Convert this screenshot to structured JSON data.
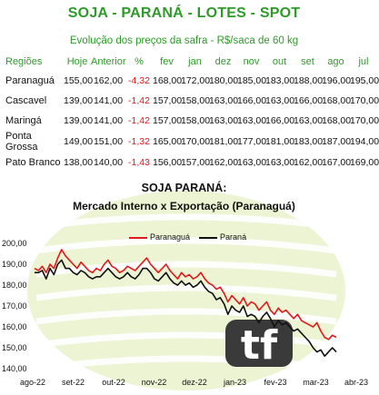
{
  "header": {
    "title": "SOJA - PARANÁ - LOTES - SPOT",
    "subtitle": "Evolução dos preços da safra - R$/saca de 60 kg"
  },
  "table": {
    "columns": [
      "Regiões",
      "Hoje",
      "Anterior",
      "%",
      "fev",
      "jan",
      "dez",
      "nov",
      "out",
      "set",
      "ago",
      "jul"
    ],
    "rows": [
      [
        "Paranaguá",
        "155,00",
        "162,00",
        "-4,32",
        "168,00",
        "172,00",
        "180,00",
        "185,00",
        "183,00",
        "188,00",
        "196,00",
        "195,00"
      ],
      [
        "Cascavel",
        "139,00",
        "141,00",
        "-1,42",
        "157,00",
        "158,00",
        "163,00",
        "166,00",
        "163,00",
        "166,00",
        "168,00",
        "170,00"
      ],
      [
        "Maringá",
        "139,00",
        "141,00",
        "-1,42",
        "157,00",
        "158,00",
        "163,00",
        "163,00",
        "166,00",
        "163,00",
        "168,00",
        "170,00"
      ],
      [
        "Ponta Grossa",
        "149,00",
        "151,00",
        "-1,32",
        "165,00",
        "170,00",
        "181,00",
        "177,00",
        "181,00",
        "183,00",
        "187,00",
        "194,00"
      ],
      [
        "Pato Branco",
        "138,00",
        "140,00",
        "-1,43",
        "156,00",
        "157,00",
        "162,00",
        "163,00",
        "163,00",
        "162,00",
        "167,00",
        "169,00"
      ]
    ],
    "negative_color": "#e0191b",
    "header_color": "#2e9a2a"
  },
  "chart": {
    "title": "SOJA PARANÁ:",
    "subtitle": "Mercado Interno x Exportação (Paranaguá)",
    "watermark": "tf"
  },
  "chart_data": {
    "type": "line",
    "ylim": [
      140,
      200
    ],
    "yticks": [
      "140,00",
      "150,00",
      "160,00",
      "170,00",
      "180,00",
      "190,00",
      "200,00"
    ],
    "xticks": [
      "ago-22",
      "set-22",
      "out-22",
      "nov-22",
      "dez-22",
      "jan-23",
      "fev-23",
      "mar-23",
      "abr-23"
    ],
    "grid": false,
    "legend_position": "top-center",
    "series": [
      {
        "name": "Paranaguá",
        "color": "#e0191b",
        "values": [
          188,
          187,
          189,
          186,
          190,
          188,
          193,
          197,
          194,
          192,
          190,
          188,
          191,
          189,
          187,
          186,
          188,
          187,
          190,
          192,
          189,
          188,
          186,
          187,
          189,
          188,
          187,
          189,
          191,
          193,
          190,
          188,
          186,
          188,
          190,
          187,
          185,
          183,
          186,
          184,
          185,
          183,
          184,
          186,
          183,
          181,
          180,
          178,
          179,
          176,
          172,
          175,
          173,
          171,
          174,
          170,
          172,
          171,
          168,
          170,
          172,
          168,
          166,
          169,
          167,
          168,
          166,
          164,
          166,
          163,
          162,
          161,
          160,
          162,
          158,
          155,
          154,
          156,
          155
        ]
      },
      {
        "name": "Paraná",
        "color": "#111111",
        "values": [
          186,
          186,
          187,
          183,
          188,
          185,
          190,
          192,
          188,
          188,
          186,
          185,
          187,
          186,
          184,
          183,
          184,
          184,
          186,
          188,
          186,
          184,
          183,
          184,
          186,
          184,
          183,
          185,
          188,
          188,
          186,
          183,
          182,
          184,
          186,
          183,
          181,
          180,
          182,
          180,
          181,
          179,
          180,
          182,
          179,
          177,
          176,
          173,
          174,
          171,
          166,
          170,
          168,
          167,
          170,
          165,
          166,
          165,
          162,
          165,
          167,
          164,
          160,
          163,
          161,
          162,
          160,
          158,
          159,
          157,
          155,
          153,
          150,
          148,
          149,
          146,
          148,
          150,
          148
        ]
      }
    ]
  }
}
